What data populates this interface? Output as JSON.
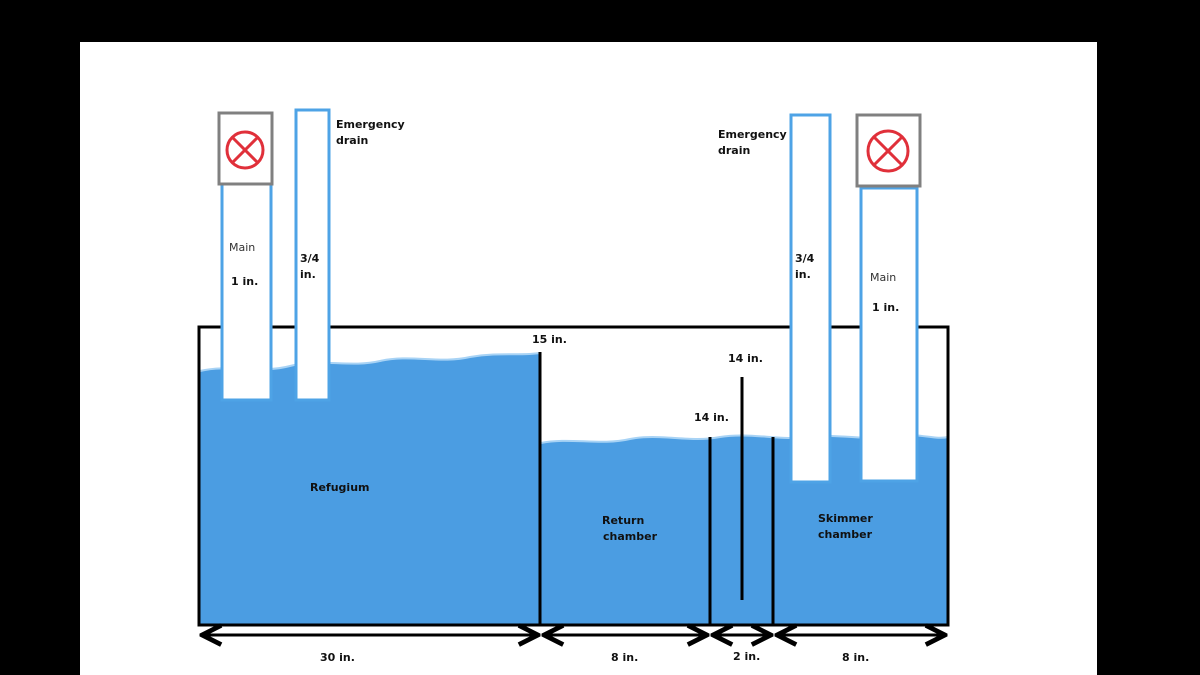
{
  "colors": {
    "frame": "#000000",
    "canvas": "#ffffff",
    "water": "#4b9de2",
    "pipe": "#4ea3e6",
    "tank_outline": "#000000",
    "valve_box": "#808080",
    "valve_mark": "#e0303a"
  },
  "left_overflow": {
    "main_label": "Main",
    "main_size": "1 in.",
    "emergency_size_line1": "3/4",
    "emergency_size_line2": "in.",
    "emergency_label_line1": "Emergency",
    "emergency_label_line2": "drain",
    "valve_icon": "closed-valve-icon"
  },
  "right_overflow": {
    "main_label": "Main",
    "main_size": "1 in.",
    "emergency_size_line1": "3/4",
    "emergency_size_line2": "in.",
    "emergency_label_line1": "Emergency",
    "emergency_label_line2": "drain",
    "valve_icon": "closed-valve-icon"
  },
  "chambers": {
    "refugium": "Refugium",
    "return_line1": "Return",
    "return_line2": "chamber",
    "skimmer_line1": "Skimmer",
    "skimmer_line2": "chamber"
  },
  "baffles": {
    "refugium_wall_height": "15 in.",
    "baffle_a_height": "14 in.",
    "baffle_b_height": "14 in."
  },
  "widths": {
    "refugium": "30 in.",
    "return": "8 in.",
    "bubble_trap": "2 in.",
    "skimmer": "8 in."
  }
}
